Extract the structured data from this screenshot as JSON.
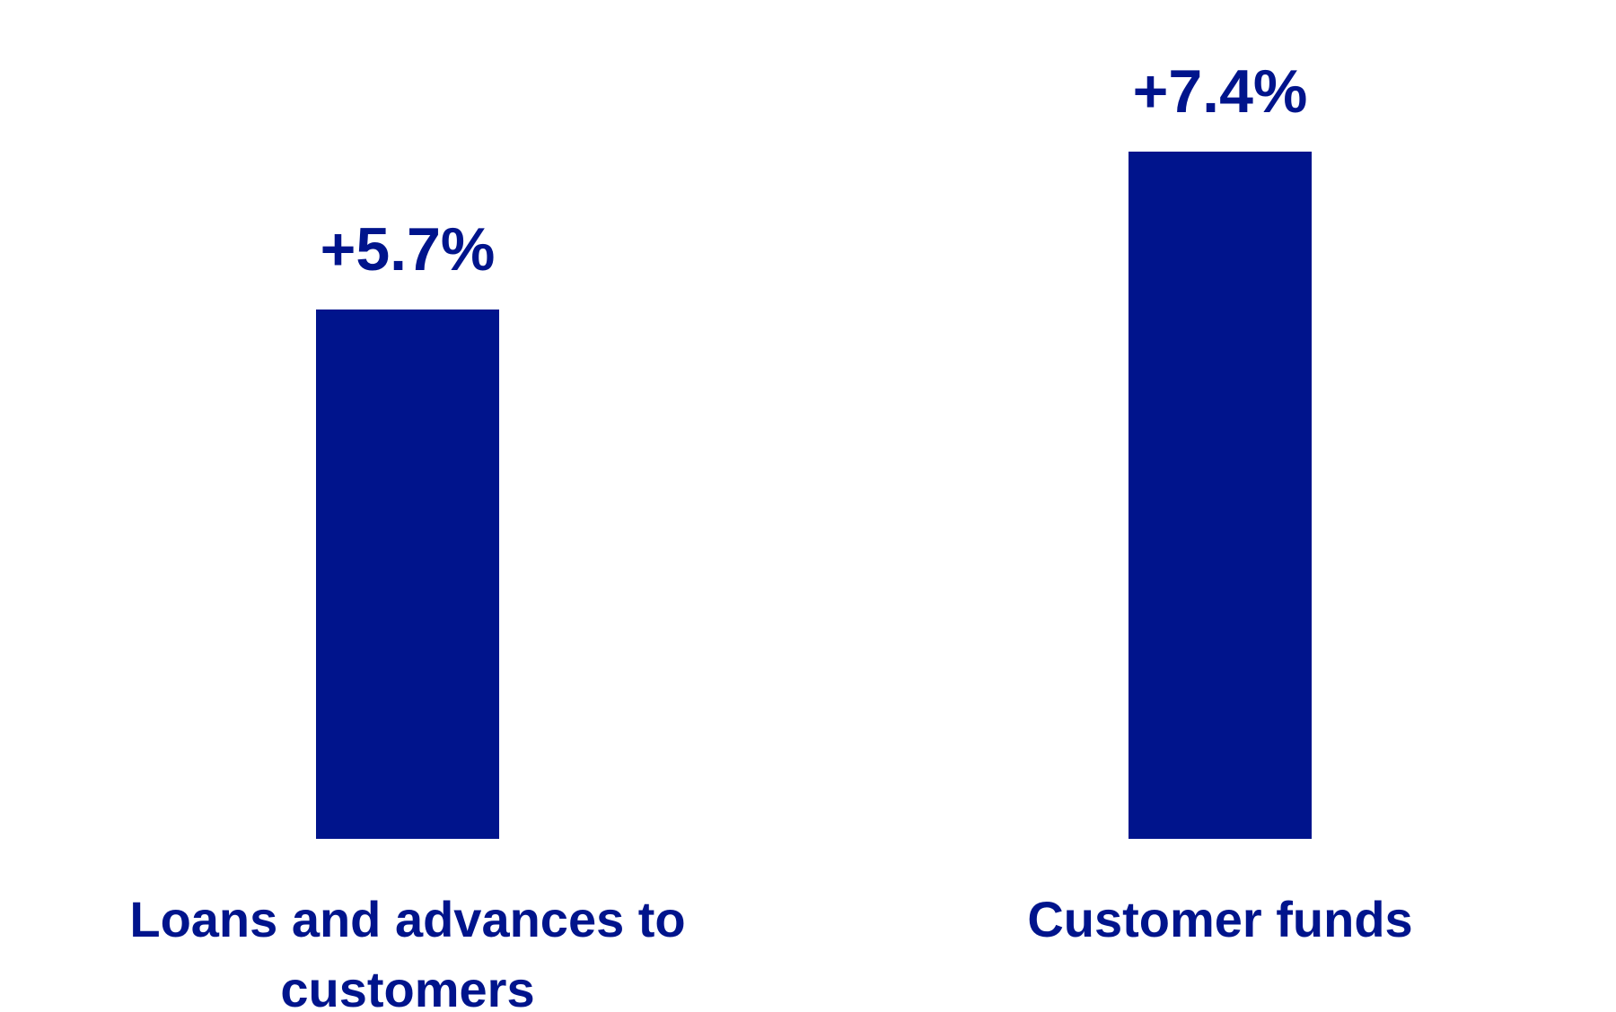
{
  "chart_data": {
    "type": "bar",
    "categories": [
      "Loans and advances to customers",
      "Customer funds"
    ],
    "category_label_lines": [
      [
        "Loans and advances to",
        "customers"
      ],
      [
        "Customer funds"
      ]
    ],
    "values": [
      5.7,
      7.4
    ],
    "data_labels": [
      "+5.7%",
      "+7.4%"
    ],
    "unit": "%",
    "ylim": [
      0,
      7.4
    ],
    "grid": false,
    "legend": "none",
    "title": "",
    "xlabel": "",
    "ylabel": "",
    "colors": {
      "bar": "#00148C",
      "text": "#00148C"
    }
  }
}
